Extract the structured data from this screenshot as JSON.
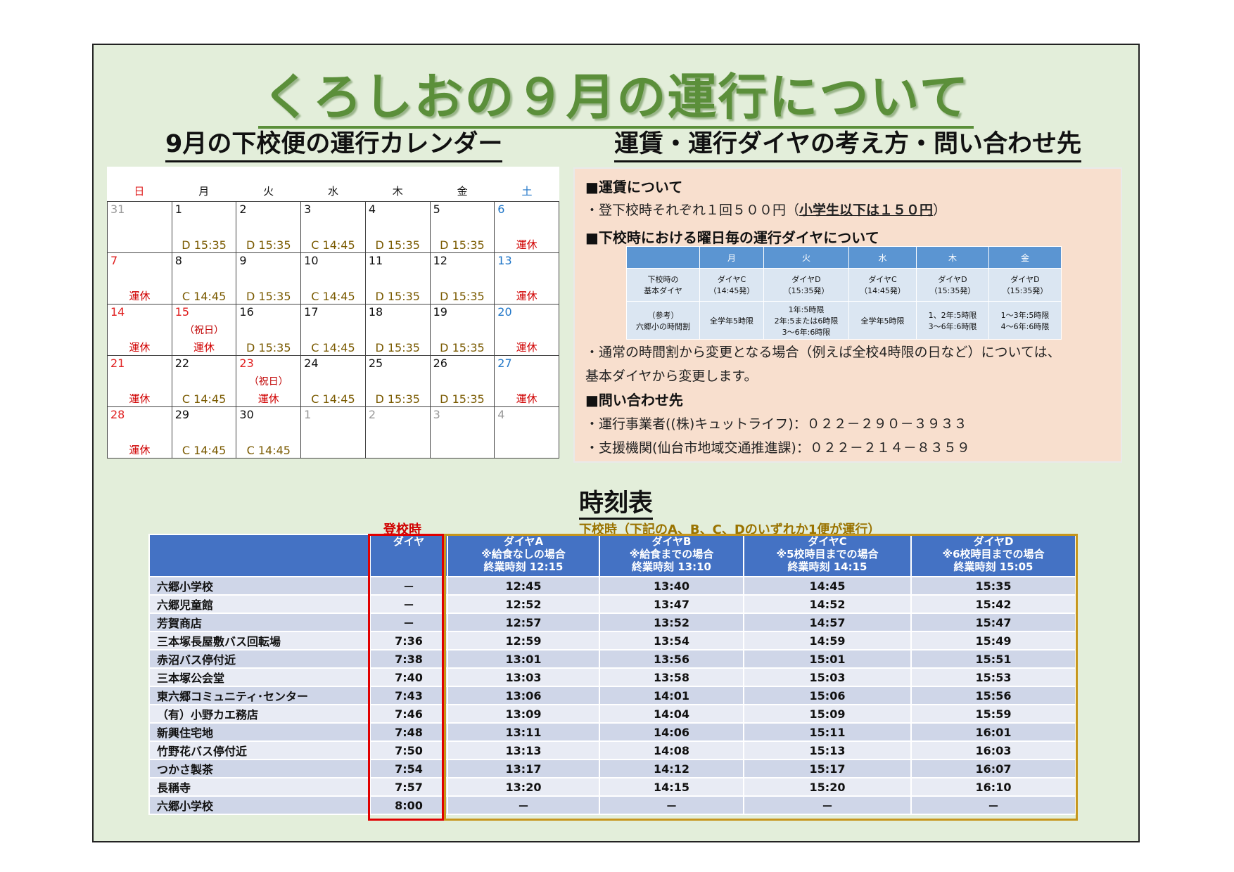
{
  "title": "くろしおの９月の運行について",
  "calendar_title": "9月の下校便の運行カレンダー",
  "info_title": "運賃・運行ダイヤの考え方・問い合わせ先",
  "calendar": {
    "weekdays": [
      "日",
      "月",
      "火",
      "水",
      "木",
      "金",
      "土"
    ],
    "cells": [
      {
        "day": "31",
        "type": "other",
        "note": "",
        "svc": ""
      },
      {
        "day": "1",
        "type": "",
        "note": "",
        "svc": "D 15:35"
      },
      {
        "day": "2",
        "type": "",
        "note": "",
        "svc": "D 15:35"
      },
      {
        "day": "3",
        "type": "",
        "note": "",
        "svc": "C 14:45"
      },
      {
        "day": "4",
        "type": "",
        "note": "",
        "svc": "D 15:35"
      },
      {
        "day": "5",
        "type": "",
        "note": "",
        "svc": "D 15:35"
      },
      {
        "day": "6",
        "type": "sat",
        "note": "",
        "svc": "運休"
      },
      {
        "day": "7",
        "type": "sun",
        "note": "",
        "svc": "運休"
      },
      {
        "day": "8",
        "type": "",
        "note": "",
        "svc": "C 14:45"
      },
      {
        "day": "9",
        "type": "",
        "note": "",
        "svc": "D 15:35"
      },
      {
        "day": "10",
        "type": "",
        "note": "",
        "svc": "C 14:45"
      },
      {
        "day": "11",
        "type": "",
        "note": "",
        "svc": "D 15:35"
      },
      {
        "day": "12",
        "type": "",
        "note": "",
        "svc": "D 15:35"
      },
      {
        "day": "13",
        "type": "sat",
        "note": "",
        "svc": "運休"
      },
      {
        "day": "14",
        "type": "sun",
        "note": "",
        "svc": "運休"
      },
      {
        "day": "15",
        "type": "sun",
        "note": "（祝日）",
        "svc": "運休"
      },
      {
        "day": "16",
        "type": "",
        "note": "",
        "svc": "D 15:35"
      },
      {
        "day": "17",
        "type": "",
        "note": "",
        "svc": "C 14:45"
      },
      {
        "day": "18",
        "type": "",
        "note": "",
        "svc": "D 15:35"
      },
      {
        "day": "19",
        "type": "",
        "note": "",
        "svc": "D 15:35"
      },
      {
        "day": "20",
        "type": "sat",
        "note": "",
        "svc": "運休"
      },
      {
        "day": "21",
        "type": "sun",
        "note": "",
        "svc": "運休"
      },
      {
        "day": "22",
        "type": "",
        "note": "",
        "svc": "C 14:45"
      },
      {
        "day": "23",
        "type": "sun",
        "note": "（祝日）",
        "svc": "運休"
      },
      {
        "day": "24",
        "type": "",
        "note": "",
        "svc": "C 14:45"
      },
      {
        "day": "25",
        "type": "",
        "note": "",
        "svc": "D 15:35"
      },
      {
        "day": "26",
        "type": "",
        "note": "",
        "svc": "D 15:35"
      },
      {
        "day": "27",
        "type": "sat",
        "note": "",
        "svc": "運休"
      },
      {
        "day": "28",
        "type": "sun",
        "note": "",
        "svc": "運休"
      },
      {
        "day": "29",
        "type": "",
        "note": "",
        "svc": "C 14:45"
      },
      {
        "day": "30",
        "type": "",
        "note": "",
        "svc": "C 14:45"
      },
      {
        "day": "1",
        "type": "other",
        "note": "",
        "svc": ""
      },
      {
        "day": "2",
        "type": "other",
        "note": "",
        "svc": ""
      },
      {
        "day": "3",
        "type": "other",
        "note": "",
        "svc": ""
      },
      {
        "day": "4",
        "type": "other",
        "note": "",
        "svc": ""
      }
    ]
  },
  "info": {
    "fare_heading": "■運賃について",
    "fare_line_prefix": "・登下校時それぞれ１回５００円（",
    "fare_line_child": "小学生以下は１５０円",
    "fare_line_suffix": "）",
    "dia_heading": "■下校時における曜日毎の運行ダイヤについて",
    "mini_table": {
      "header": [
        "",
        "月",
        "火",
        "水",
        "木",
        "金"
      ],
      "row1": [
        "下校時の\n基本ダイヤ",
        "ダイヤC\n（14:45発）",
        "ダイヤD\n（15:35発）",
        "ダイヤC\n（14:45発）",
        "ダイヤD\n（15:35発）",
        "ダイヤD\n（15:35発）"
      ],
      "row2": [
        "（参考）\n六郷小の時間割",
        "全学年5時限",
        "1年:5時限\n2年:5または6時限\n3～6年:6時限",
        "全学年5時限",
        "1、2年:5時限\n3～6年:6時限",
        "1～3年:5時限\n4～6年:6時限"
      ]
    },
    "note_line1": "・通常の時間割から変更となる場合（例えば全校4時限の日など）については、",
    "note_line2": "基本ダイヤから変更します。",
    "contact_heading": "■問い合わせ先",
    "contact1": "・運行事業者((株)キュットライフ)：０２２－２９０－３９３３",
    "contact2": "・支援機関(仙台市地域交通推進課)：０２２－２１４－８３５９"
  },
  "timetable": {
    "title": "時刻表",
    "label_up": "登校時",
    "label_down": "下校時（下記のA、B、C、Dのいずれか1便が運行）",
    "headers": [
      "",
      "ダイヤ",
      "ダイヤA\n※給食なしの場合\n終業時刻 12:15",
      "ダイヤB\n※給食までの場合\n終業時刻 13:10",
      "ダイヤC\n※5校時目までの場合\n終業時刻 14:15",
      "ダイヤD\n※6校時目までの場合\n終業時刻 15:05"
    ],
    "rows": [
      [
        "六郷小学校",
        "－",
        "12:45",
        "13:40",
        "14:45",
        "15:35"
      ],
      [
        "六郷児童館",
        "－",
        "12:52",
        "13:47",
        "14:52",
        "15:42"
      ],
      [
        "芳賀商店",
        "－",
        "12:57",
        "13:52",
        "14:57",
        "15:47"
      ],
      [
        "三本塚長屋敷バス回転場",
        "7:36",
        "12:59",
        "13:54",
        "14:59",
        "15:49"
      ],
      [
        "赤沼バス停付近",
        "7:38",
        "13:01",
        "13:56",
        "15:01",
        "15:51"
      ],
      [
        "三本塚公会堂",
        "7:40",
        "13:03",
        "13:58",
        "15:03",
        "15:53"
      ],
      [
        "東六郷コミュニティ･センター",
        "7:43",
        "13:06",
        "14:01",
        "15:06",
        "15:56"
      ],
      [
        "（有）小野カエ務店",
        "7:46",
        "13:09",
        "14:04",
        "15:09",
        "15:59"
      ],
      [
        "新興住宅地",
        "7:48",
        "13:11",
        "14:06",
        "15:11",
        "16:01"
      ],
      [
        "竹野花バス停付近",
        "7:50",
        "13:13",
        "14:08",
        "15:13",
        "16:03"
      ],
      [
        "つかさ製茶",
        "7:54",
        "13:17",
        "14:12",
        "15:17",
        "16:07"
      ],
      [
        "長稱寺",
        "7:57",
        "13:20",
        "14:15",
        "15:20",
        "16:10"
      ],
      [
        "六郷小学校",
        "8:00",
        "－",
        "－",
        "－",
        "－"
      ]
    ]
  },
  "colors": {
    "title_green": "#5b8f3a",
    "sunday_red": "#e02020",
    "saturday_blue": "#2076c8",
    "table_header_blue": "#4472c4",
    "up_box_red": "#e00000",
    "down_box_gold": "#c6961c"
  }
}
